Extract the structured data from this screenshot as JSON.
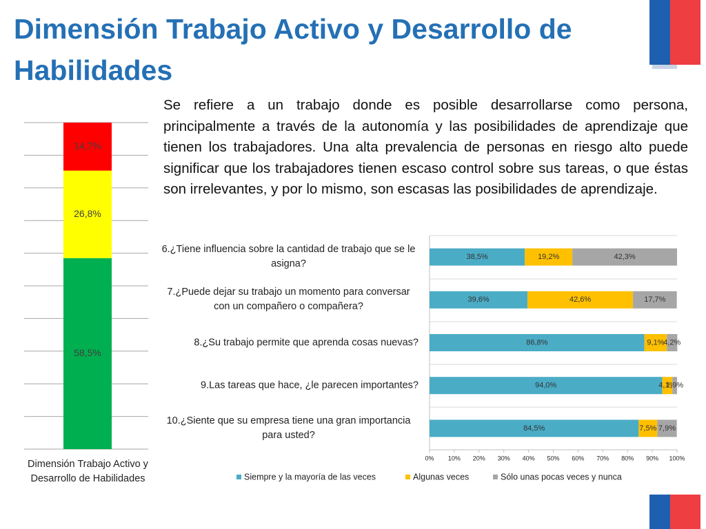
{
  "slide": {
    "title": "Dimensión Trabajo Activo y Desarrollo de Habilidades",
    "text": "Se refiere a un trabajo donde es posible desarrollarse como persona, principalmente a través de la autonomía y las posibilidades de aprendizaje que tienen los trabajadores. Una alta prevalencia de personas en riesgo alto puede significar que los trabajadores tienen escaso control sobre sus tareas, o que éstas son irrelevantes, y por lo mismo, son escasas las posibilidades de aprendizaje."
  },
  "chart_data": [
    {
      "type": "bar",
      "orientation": "vertical",
      "stacked": true,
      "categories": [
        "Dimensión Trabajo Activo y Desarrollo de Habilidades"
      ],
      "series": [
        {
          "color": "#00b050",
          "values": [
            58.5
          ],
          "value_labels": [
            "58,5%"
          ]
        },
        {
          "color": "#ffff00",
          "values": [
            26.8
          ],
          "value_labels": [
            "26,8%"
          ]
        },
        {
          "color": "#ff0000",
          "values": [
            14.7
          ],
          "value_labels": [
            "14,7%"
          ]
        }
      ],
      "ylim": [
        0,
        100
      ],
      "yticks": [
        0,
        10,
        20,
        30,
        40,
        50,
        60,
        70,
        80,
        90,
        100
      ],
      "grid": true,
      "tick_labels": false
    },
    {
      "type": "bar",
      "orientation": "horizontal",
      "stacked": true,
      "categories": [
        "6.¿Tiene influencia sobre la cantidad de trabajo que se le asigna?",
        "7.¿Puede dejar su trabajo un momento para conversar con un compañero o compañera?",
        "8.¿Su trabajo permite que aprenda cosas nuevas?",
        "9.Las tareas que hace, ¿le parecen importantes?",
        "10.¿Siente que su empresa tiene una gran importancia para usted?"
      ],
      "series": [
        {
          "name": "Siempre y la mayoría de las veces",
          "color": "#4bacc6",
          "values": [
            38.5,
            39.6,
            86.8,
            94.0,
            84.5
          ],
          "value_labels": [
            "38,5%",
            "39,6%",
            "86,8%",
            "94,0%",
            "84,5%"
          ]
        },
        {
          "name": "Algunas veces",
          "color": "#ffc000",
          "values": [
            19.2,
            42.6,
            9.1,
            4.1,
            7.5
          ],
          "value_labels": [
            "19,2%",
            "42,6%",
            "9,1%",
            "4,1%",
            "7,5%"
          ]
        },
        {
          "name": "Sólo unas pocas veces y nunca",
          "color": "#a6a6a6",
          "values": [
            42.3,
            17.7,
            4.2,
            1.9,
            7.9
          ],
          "value_labels": [
            "42,3%",
            "17,7%",
            "4,2%",
            "1,9%",
            "7,9%"
          ]
        }
      ],
      "xlim": [
        0,
        100
      ],
      "xticks": [
        {
          "value": 0,
          "label": "0%"
        },
        {
          "value": 10,
          "label": "10%"
        },
        {
          "value": 20,
          "label": "20%"
        },
        {
          "value": 30,
          "label": "30%"
        },
        {
          "value": 40,
          "label": "40%"
        },
        {
          "value": 50,
          "label": "50%"
        },
        {
          "value": 60,
          "label": "60%"
        },
        {
          "value": 70,
          "label": "70%"
        },
        {
          "value": 80,
          "label": "80%"
        },
        {
          "value": 90,
          "label": "90%"
        },
        {
          "value": 100,
          "label": "100%"
        }
      ],
      "legend": "bottom"
    }
  ]
}
